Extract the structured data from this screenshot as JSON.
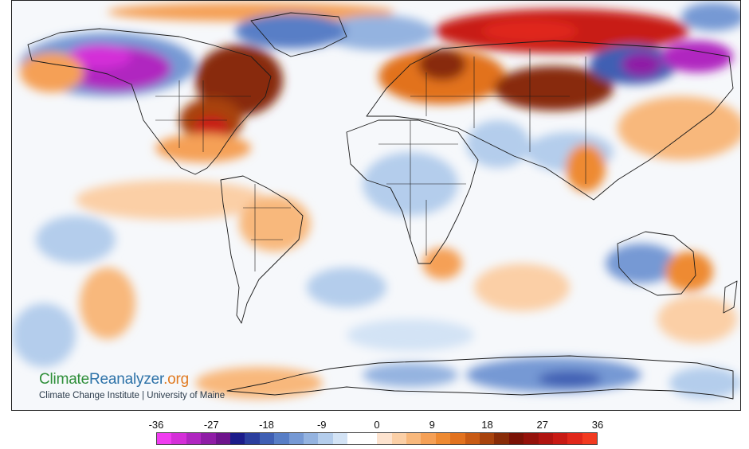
{
  "watermark": {
    "brand_part1": "Climate",
    "brand_part2": "Reanalyzer",
    "brand_part3": ".org",
    "institution": "Climate Change Institute | University of Maine"
  },
  "legend": {
    "ticks": [
      "-36",
      "-27",
      "-18",
      "-9",
      "0",
      "9",
      "18",
      "27",
      "36"
    ],
    "tick_values": [
      -36,
      -27,
      -18,
      -9,
      0,
      9,
      18,
      27,
      36
    ],
    "range": [
      -36,
      36
    ],
    "colors": [
      "#f03cf0",
      "#d42fd8",
      "#b026c0",
      "#8f1da6",
      "#6e148c",
      "#1c1c8a",
      "#2c3f9e",
      "#3f5fb3",
      "#587ec6",
      "#7699d4",
      "#94b3e0",
      "#b4cdec",
      "#d3e3f5",
      "#ffffff",
      "#ffffff",
      "#fde3cf",
      "#fbcfa6",
      "#f8b87c",
      "#f5a056",
      "#ee8a32",
      "#e2721f",
      "#c85a14",
      "#a8430d",
      "#882c08",
      "#7a1206",
      "#94120b",
      "#b01410",
      "#c81a14",
      "#e0271a",
      "#f23a20"
    ]
  },
  "colors": {
    "extreme_cold": "#f03cf0",
    "cold": "#3f5fb3",
    "neutral": "#ffffff",
    "warm": "#ee8a32",
    "extreme_warm": "#f23a20"
  }
}
